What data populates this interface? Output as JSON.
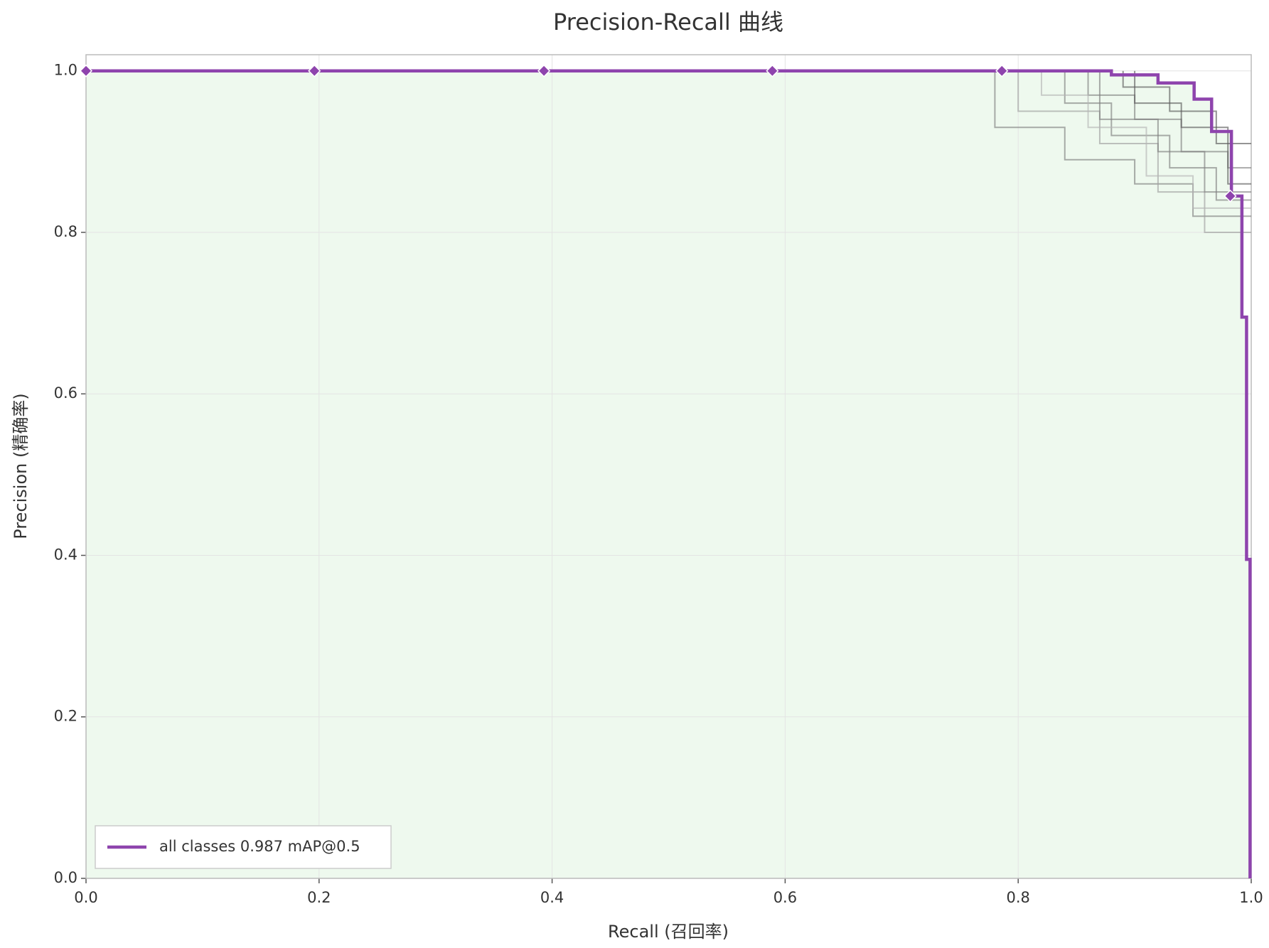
{
  "chart_data": {
    "type": "line",
    "title": "Precision-Recall 曲线",
    "x_label": "Recall (召回率)",
    "y_label": "Precision (精确率)",
    "xlim": [
      0,
      1
    ],
    "ylim": [
      0,
      1.02
    ],
    "xticks": [
      {
        "value": 0,
        "label": "0.0"
      },
      0.2,
      0.4,
      0.6,
      0.8,
      {
        "value": 1,
        "label": "1.0"
      }
    ],
    "yticks": [
      {
        "value": 0,
        "label": "0.0"
      },
      0.2,
      0.4,
      0.6,
      0.8,
      {
        "value": 1,
        "label": "1.0"
      }
    ],
    "grid": true,
    "legend": "lower left",
    "fill_color": "#eef9ee",
    "series": [
      {
        "name": "all classes 0.987 mAP@0.5",
        "color": "#8e44ad",
        "x": [
          0,
          0.88,
          0.88,
          0.92,
          0.92,
          0.951,
          0.951,
          0.966,
          0.966,
          0.983,
          0.983,
          0.992,
          0.992,
          0.996,
          0.996,
          0.999,
          0.999
        ],
        "values": [
          1,
          1,
          0.995,
          0.995,
          0.985,
          0.985,
          0.965,
          0.965,
          0.925,
          0.925,
          0.845,
          0.845,
          0.695,
          0.695,
          0.395,
          0.395,
          0
        ]
      }
    ],
    "markers": {
      "color": "#8e44ad",
      "x": [
        0,
        0.196,
        0.393,
        0.589,
        0.786,
        0.982
      ],
      "values": [
        1,
        1,
        1,
        1,
        1,
        0.845
      ]
    },
    "class_curves": [
      {
        "color": "#7f7f7f",
        "x": [
          0.78,
          0.78,
          0.84,
          0.84,
          0.9,
          0.9,
          0.95,
          0.95,
          1
        ],
        "values": [
          1,
          0.93,
          0.93,
          0.89,
          0.89,
          0.86,
          0.86,
          0.82,
          0.82
        ]
      },
      {
        "color": "#7f7f7f",
        "x": [
          0.86,
          0.86,
          0.9,
          0.9,
          0.94,
          0.94,
          0.98,
          0.98,
          1
        ],
        "values": [
          1,
          0.97,
          0.97,
          0.94,
          0.94,
          0.9,
          0.9,
          0.88,
          0.88
        ]
      },
      {
        "color": "#a0a0a0",
        "x": [
          0.8,
          0.8,
          0.87,
          0.87,
          0.92,
          0.92,
          0.96,
          0.96,
          1
        ],
        "values": [
          1,
          0.95,
          0.95,
          0.91,
          0.91,
          0.85,
          0.85,
          0.8,
          0.8
        ]
      },
      {
        "color": "#5a5a5a",
        "x": [
          0.89,
          0.89,
          0.93,
          0.93,
          0.97,
          0.97,
          1
        ],
        "values": [
          1,
          0.98,
          0.98,
          0.95,
          0.95,
          0.91,
          0.91
        ]
      },
      {
        "color": "#7f7f7f",
        "x": [
          0.84,
          0.84,
          0.88,
          0.88,
          0.93,
          0.93,
          0.97,
          0.97,
          1
        ],
        "values": [
          1,
          0.96,
          0.96,
          0.92,
          0.92,
          0.88,
          0.88,
          0.84,
          0.84
        ]
      },
      {
        "color": "#5a5a5a",
        "x": [
          0.9,
          0.9,
          0.94,
          0.94,
          0.98,
          0.98,
          1
        ],
        "values": [
          1,
          0.96,
          0.96,
          0.93,
          0.93,
          0.86,
          0.86
        ]
      },
      {
        "color": "#b5b5b5",
        "x": [
          0.82,
          0.82,
          0.86,
          0.86,
          0.91,
          0.91,
          0.95,
          0.95,
          1
        ],
        "values": [
          1,
          0.97,
          0.97,
          0.93,
          0.93,
          0.87,
          0.87,
          0.83,
          0.83
        ]
      },
      {
        "color": "#7f7f7f",
        "x": [
          0.87,
          0.87,
          0.92,
          0.92,
          0.96,
          0.96,
          1
        ],
        "values": [
          1,
          0.94,
          0.94,
          0.9,
          0.9,
          0.85,
          0.85
        ]
      }
    ]
  }
}
